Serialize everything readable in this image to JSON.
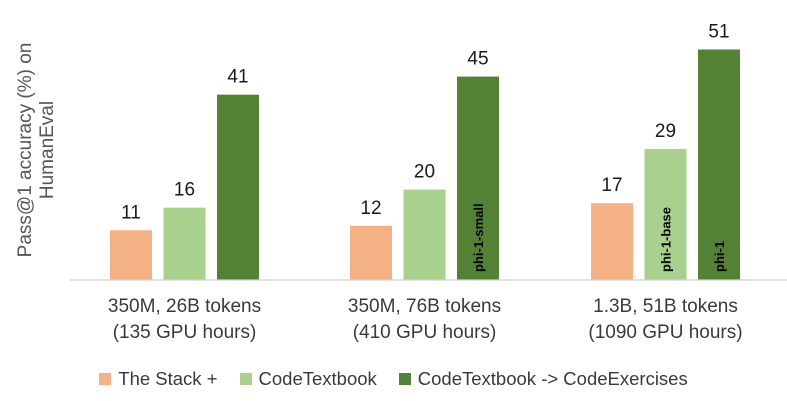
{
  "chart_data": {
    "type": "bar",
    "ylabel": "Pass@1 accuracy (%) on HumanEval",
    "categories": [
      [
        "350M, 26B tokens",
        "(135 GPU hours)"
      ],
      [
        "350M, 76B tokens",
        "(410 GPU hours)"
      ],
      [
        "1.3B, 51B tokens",
        "(1090 GPU hours)"
      ]
    ],
    "series": [
      {
        "name": "The Stack +",
        "color": "#f4b183",
        "values": [
          11,
          12,
          17
        ],
        "bar_labels": [
          "",
          "",
          ""
        ]
      },
      {
        "name": "CodeTextbook",
        "color": "#a9d18e",
        "values": [
          16,
          20,
          29
        ],
        "bar_labels": [
          "",
          "",
          "phi-1-base"
        ]
      },
      {
        "name": "CodeTextbook -> CodeExercises",
        "color": "#548235",
        "values": [
          41,
          45,
          51
        ],
        "bar_labels": [
          "",
          "phi-1-small",
          "phi-1"
        ]
      }
    ],
    "ylim": [
      0,
      55
    ],
    "grid": false,
    "legend_position": "bottom"
  }
}
